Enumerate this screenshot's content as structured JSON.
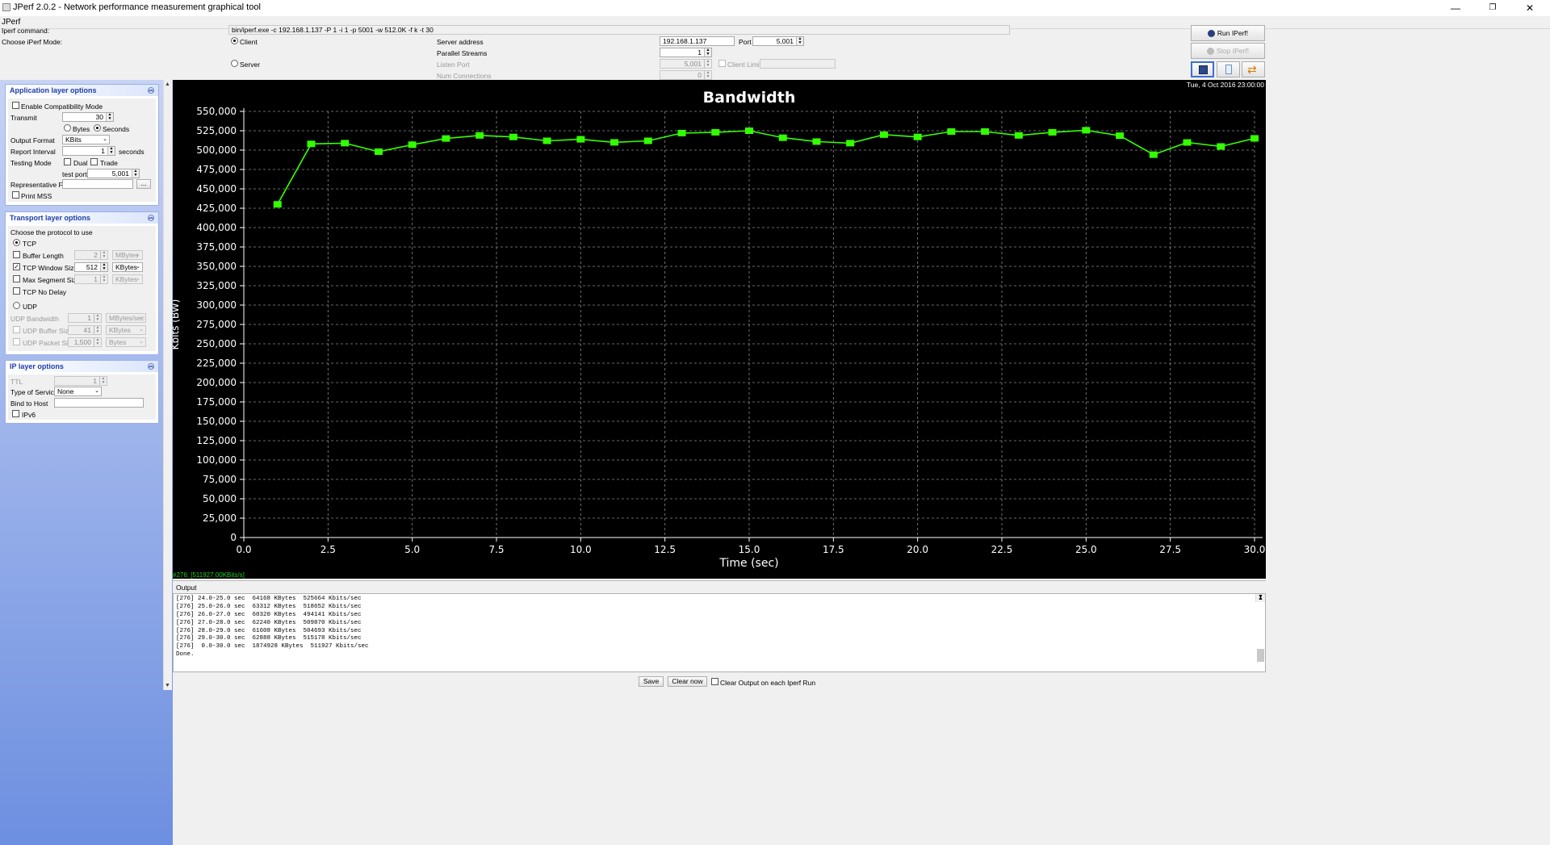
{
  "window": {
    "title": "JPerf 2.0.2 - Network performance measurement graphical tool",
    "minimize": "—",
    "maximize": "❐",
    "close": "✕"
  },
  "menu": {
    "app": "JPerf"
  },
  "top": {
    "command_label": "Iperf command:",
    "command_value": "bin/iperf.exe -c 192.168.1.137 -P 1 -i 1 -p 5001 -w 512.0K -f k -t 30",
    "mode_label": "Choose iPerf Mode:",
    "client_label": "Client",
    "server_label": "Server",
    "server_address_label": "Server address",
    "server_address_value": "192.168.1.137",
    "port_label": "Port",
    "port_value": "5,001",
    "parallel_label": "Parallel Streams",
    "parallel_value": "1",
    "listen_port_label": "Listen Port",
    "listen_port_value": "5,001",
    "client_limit_label": "Client Limit",
    "num_conn_label": "Num Connections",
    "num_conn_value": "0",
    "run_label": "Run IPerf!",
    "stop_label": "Stop IPerf!"
  },
  "app_layer": {
    "title": "Application layer options",
    "compat_label": "Enable Compatibility Mode",
    "transmit_label": "Transmit",
    "transmit_value": "30",
    "bytes_label": "Bytes",
    "seconds_label": "Seconds",
    "output_format_label": "Output Format",
    "output_format_value": "KBits",
    "report_interval_label": "Report Interval",
    "report_interval_value": "1",
    "report_interval_unit": "seconds",
    "testing_mode_label": "Testing Mode",
    "dual_label": "Dual",
    "trade_label": "Trade",
    "test_port_label": "test port",
    "test_port_value": "5,001",
    "rep_file_label": "Representative File",
    "browse_label": "...",
    "print_mss_label": "Print MSS"
  },
  "transport_layer": {
    "title": "Transport layer options",
    "choose_label": "Choose the protocol to use",
    "tcp_label": "TCP",
    "buffer_length_label": "Buffer Length",
    "buffer_length_value": "2",
    "buffer_length_unit": "MBytes",
    "window_size_label": "TCP Window Size",
    "window_size_value": "512",
    "window_size_unit": "KBytes",
    "mss_label": "Max Segment Size",
    "mss_value": "1",
    "mss_unit": "KBytes",
    "nodelay_label": "TCP No Delay",
    "udp_label": "UDP",
    "udp_bw_label": "UDP Bandwidth",
    "udp_bw_value": "1",
    "udp_bw_unit": "MBytes/sec",
    "udp_buf_label": "UDP Buffer Size",
    "udp_buf_value": "41",
    "udp_buf_unit": "KBytes",
    "udp_pkt_label": "UDP Packet Size",
    "udp_pkt_value": "1,500",
    "udp_pkt_unit": "Bytes"
  },
  "ip_layer": {
    "title": "IP layer options",
    "ttl_label": "TTL",
    "ttl_value": "1",
    "tos_label": "Type of Service",
    "tos_value": "None",
    "bind_label": "Bind to Host",
    "ipv6_label": "IPv6"
  },
  "chart_header": {
    "timestamp": "Tue, 4 Oct 2016 23:00:00"
  },
  "chart_status": "#276: [511927.00KBits/s]",
  "chart_data": {
    "type": "line",
    "title": "Bandwidth",
    "xlabel": "Time (sec)",
    "ylabel": "Kbits (BW)",
    "xlim": [
      0,
      30
    ],
    "ylim": [
      0,
      550000
    ],
    "x_ticks": [
      "0.0",
      "2.5",
      "5.0",
      "7.5",
      "10.0",
      "12.5",
      "15.0",
      "17.5",
      "20.0",
      "22.5",
      "25.0",
      "27.5",
      "30.0"
    ],
    "y_ticks": [
      "0",
      "25,000",
      "50,000",
      "75,000",
      "100,000",
      "125,000",
      "150,000",
      "175,000",
      "200,000",
      "225,000",
      "250,000",
      "275,000",
      "300,000",
      "325,000",
      "350,000",
      "375,000",
      "400,000",
      "425,000",
      "450,000",
      "475,000",
      "500,000",
      "525,000",
      "550,000"
    ],
    "grid": true,
    "series": [
      {
        "color": "#33ff00",
        "x": [
          1,
          2,
          3,
          4,
          5,
          6,
          7,
          8,
          9,
          10,
          11,
          12,
          13,
          14,
          15,
          16,
          17,
          18,
          19,
          20,
          21,
          22,
          23,
          24,
          25,
          26,
          27,
          28,
          29,
          30
        ],
        "y": [
          430000,
          508000,
          509000,
          498000,
          507000,
          515000,
          519000,
          517000,
          512000,
          514000,
          510000,
          512000,
          522000,
          523000,
          525000,
          516000,
          511000,
          509000,
          520000,
          517000,
          524000,
          524000,
          519000,
          523000,
          525664,
          518652,
          494141,
          509870,
          504693,
          515178
        ]
      }
    ]
  },
  "output": {
    "tab_label": "Output",
    "lines": [
      "[276] 24.0-25.0 sec  64168 KBytes  525664 Kbits/sec",
      "[276] 25.0-26.0 sec  63312 KBytes  518652 Kbits/sec",
      "[276] 26.0-27.0 sec  60320 KBytes  494141 Kbits/sec",
      "[276] 27.0-28.0 sec  62240 KBytes  509870 Kbits/sec",
      "[276] 28.0-29.0 sec  61608 KBytes  504693 Kbits/sec",
      "[276] 29.0-30.0 sec  62888 KBytes  515178 Kbits/sec",
      "[276]  0.0-30.0 sec  1874928 KBytes  511927 Kbits/sec",
      "Done."
    ],
    "save_label": "Save",
    "clear_label": "Clear now",
    "clear_each_label": "Clear Output on each Iperf Run"
  }
}
